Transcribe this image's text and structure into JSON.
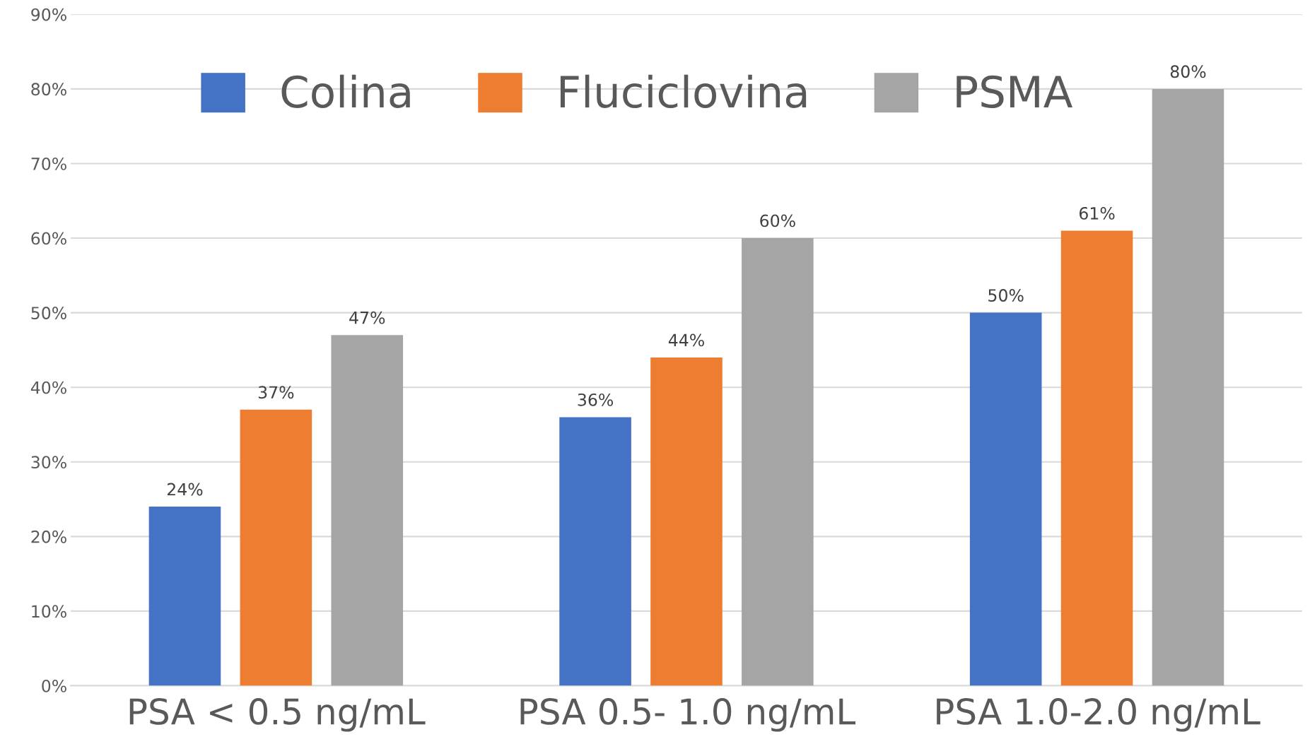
{
  "chart_data": {
    "type": "bar",
    "categories": [
      "PSA < 0.5 ng/mL",
      "PSA 0.5- 1.0 ng/mL",
      "PSA 1.0-2.0 ng/mL"
    ],
    "series": [
      {
        "name": "Colina",
        "color": "#4472c4",
        "values": [
          24,
          36,
          50
        ],
        "value_labels": [
          "24%",
          "36%",
          "50%"
        ]
      },
      {
        "name": "Fluciclovina",
        "color": "#ed7d31",
        "values": [
          37,
          44,
          61
        ],
        "value_labels": [
          "37%",
          "44%",
          "61%"
        ]
      },
      {
        "name": "PSMA",
        "color": "#a5a5a5",
        "values": [
          47,
          60,
          80
        ],
        "value_labels": [
          "47%",
          "60%",
          "80%"
        ]
      }
    ],
    "ylim": [
      0,
      90
    ],
    "yticks": [
      {
        "value": 0,
        "label": "0%"
      },
      {
        "value": 10,
        "label": "10%"
      },
      {
        "value": 20,
        "label": "20%"
      },
      {
        "value": 30,
        "label": "30%"
      },
      {
        "value": 40,
        "label": "40%"
      },
      {
        "value": 50,
        "label": "50%"
      },
      {
        "value": 60,
        "label": "60%"
      },
      {
        "value": 70,
        "label": "70%"
      },
      {
        "value": 80,
        "label": "80%"
      },
      {
        "value": 90,
        "label": "90%"
      }
    ],
    "grid": "y",
    "legend": "top"
  }
}
